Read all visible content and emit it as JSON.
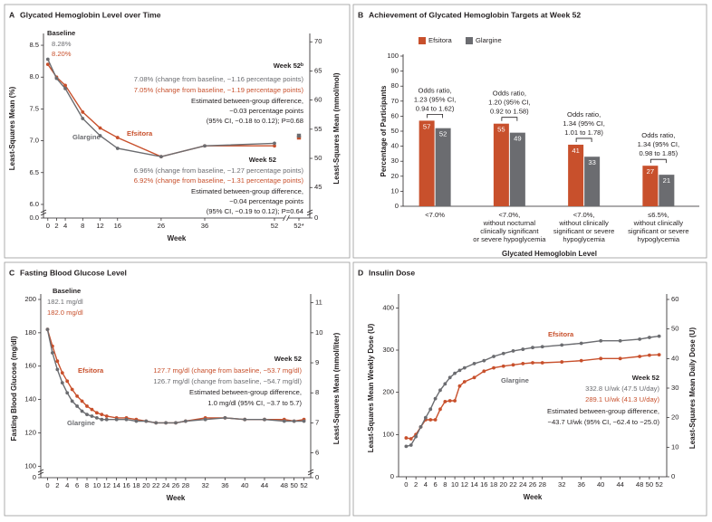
{
  "chart_data": [
    {
      "panel": "A",
      "type": "line",
      "title": "Glycated Hemoglobin Level over Time",
      "x": [
        0,
        2,
        4,
        8,
        12,
        16,
        26,
        36,
        52
      ],
      "xlim": [
        -1,
        52
      ],
      "xticks": [
        0,
        2,
        4,
        8,
        12,
        16,
        26,
        36,
        52
      ],
      "extra_x_label": "52*",
      "series": [
        {
          "name": "Efsitora",
          "color": "#c8502c",
          "values": [
            8.2,
            8.0,
            7.87,
            7.45,
            7.2,
            7.05,
            6.75,
            6.92,
            6.92
          ],
          "extra_value": 7.05
        },
        {
          "name": "Glargine",
          "color": "#6b6c70",
          "values": [
            8.28,
            7.98,
            7.82,
            7.35,
            7.08,
            6.88,
            6.75,
            6.92,
            6.96
          ],
          "extra_value": 7.08
        }
      ],
      "ylim": [
        5.9,
        8.6
      ],
      "yticks": [
        {
          "value": 6,
          "label": "6.0"
        },
        6.5,
        {
          "value": 7,
          "label": "7.0"
        },
        7.5,
        {
          "value": 8,
          "label": "8.0"
        },
        8.5
      ],
      "y_break_tick": {
        "value": 0,
        "label": "0.0"
      },
      "y2lim": [
        41,
        70.5
      ],
      "y2ticks": [
        45,
        50,
        55,
        60,
        65,
        70
      ],
      "y2_break_tick": 0,
      "xlabel": "Week",
      "ylabel": "Least-Squares Mean (%)",
      "y2label": "Least-Squares Mean (mmol/mol)",
      "annotations": [
        {
          "text": "Baseline",
          "color": "#231f20"
        },
        {
          "text": "8.28%",
          "color": "#6b6c70"
        },
        {
          "text": "8.20%",
          "color": "#c8502c"
        },
        {
          "text": "Week 52ᵇ",
          "color": "#231f20"
        },
        {
          "text": "7.08% (change from baseline, −1.16 percentage points)",
          "color": "#6b6c70"
        },
        {
          "text": "7.05% (change from baseline, −1.19 percentage points)",
          "color": "#c8502c"
        },
        {
          "text": "Estimated between-group difference,",
          "color": "#231f20"
        },
        {
          "text": "−0.03 percentage points",
          "color": "#231f20"
        },
        {
          "text": "(95% CI, −0.18 to 0.12); P=0.68",
          "color": "#231f20"
        },
        {
          "text": "Week 52",
          "color": "#231f20"
        },
        {
          "text": "6.96% (change from baseline, −1.27 percentage points)",
          "color": "#6b6c70"
        },
        {
          "text": "6.92% (change from baseline, −1.31 percentage points)",
          "color": "#c8502c"
        },
        {
          "text": "Estimated between-group difference,",
          "color": "#231f20"
        },
        {
          "text": "−0.04 percentage points",
          "color": "#231f20"
        },
        {
          "text": "(95% CI, −0.19 to 0.12); P=0.64",
          "color": "#231f20"
        }
      ]
    },
    {
      "panel": "B",
      "type": "bar",
      "title": "Achievement of Glycated Hemoglobin Targets at Week 52",
      "categories": [
        [
          "<7.0%"
        ],
        [
          "<7.0%,",
          "without nocturnal",
          "clinically significant",
          "or severe hypoglycemia"
        ],
        [
          "<7.0%,",
          "without clinically",
          "significant or severe",
          "hypoglycemia"
        ],
        [
          "≤6.5%,",
          "without clinically",
          "significant or severe",
          "hypoglycemia"
        ]
      ],
      "series": [
        {
          "name": "Efsitora",
          "color": "#c8502c",
          "values": [
            57,
            55,
            41,
            27
          ]
        },
        {
          "name": "Glargine",
          "color": "#6b6c70",
          "values": [
            52,
            49,
            33,
            21
          ]
        }
      ],
      "odds_ratios": [
        [
          "Odds ratio,",
          "1.23 (95% CI,",
          "0.94 to 1.62)"
        ],
        [
          "Odds ratio,",
          "1.20 (95% CI,",
          "0.92 to 1.58)"
        ],
        [
          "Odds ratio,",
          "1.34 (95% CI,",
          "1.01 to 1.78)"
        ],
        [
          "Odds ratio,",
          "1.34 (95% CI,",
          "0.98 to 1.85)"
        ]
      ],
      "ylim": [
        0,
        100
      ],
      "yticks": [
        0,
        10,
        20,
        30,
        40,
        50,
        60,
        70,
        80,
        90,
        100
      ],
      "xlabel": "Glycated Hemoglobin Level",
      "ylabel": "Percentage of Participants",
      "legend": "top-left"
    },
    {
      "panel": "C",
      "type": "line",
      "title": "Fasting Blood Glucose Level",
      "x": [
        0,
        1,
        2,
        3,
        4,
        5,
        6,
        7,
        8,
        9,
        10,
        11,
        12,
        14,
        16,
        18,
        20,
        22,
        24,
        26,
        28,
        32,
        36,
        40,
        44,
        48,
        50,
        52
      ],
      "xlim": [
        -1,
        53
      ],
      "xticks": [
        0,
        2,
        4,
        6,
        8,
        10,
        12,
        14,
        16,
        18,
        20,
        22,
        24,
        26,
        28,
        32,
        36,
        40,
        44,
        48,
        50,
        52
      ],
      "series": [
        {
          "name": "Efsitora",
          "color": "#c8502c",
          "values": [
            182,
            172,
            163,
            156,
            151,
            146,
            142,
            139,
            136,
            134,
            132,
            131,
            130,
            129,
            129,
            128,
            127,
            126,
            126,
            126,
            127,
            129,
            129,
            128,
            128,
            128,
            127,
            128
          ]
        },
        {
          "name": "Glargine",
          "color": "#6b6c70",
          "values": [
            182,
            168,
            158,
            150,
            144,
            139,
            136,
            133,
            131,
            130,
            129,
            128,
            128,
            128,
            128,
            127,
            127,
            126,
            126,
            126,
            127,
            128,
            129,
            128,
            128,
            127,
            127,
            127
          ]
        }
      ],
      "ylim": [
        98,
        200
      ],
      "yticks": [
        100,
        120,
        140,
        160,
        180,
        200
      ],
      "y_break_tick": 0,
      "y2lim": [
        5.444,
        11.111
      ],
      "y2ticks": [
        6,
        7,
        8,
        9,
        10,
        11
      ],
      "y2_break_tick": 0,
      "xlabel": "Week",
      "ylabel": "Fasting Blood Glucose (mg/dl)",
      "y2label": "Least-Squares Mean (mmol/liter)",
      "annotations": [
        {
          "text": "Baseline",
          "color": "#231f20"
        },
        {
          "text": "182.1 mg/dl",
          "color": "#6b6c70"
        },
        {
          "text": "182.0 mg/dl",
          "color": "#c8502c"
        },
        {
          "text": "Week 52",
          "color": "#231f20"
        },
        {
          "text": "127.7 mg/dl (change from baseline, −53.7 mg/dl)",
          "color": "#c8502c"
        },
        {
          "text": "126.7 mg/dl (change from baseline, −54.7 mg/dl)",
          "color": "#6b6c70"
        },
        {
          "text": "Estimated between-group difference,",
          "color": "#231f20"
        },
        {
          "text": "1.0 mg/dl (95% CI, −3.7 to 5.7)",
          "color": "#231f20"
        }
      ]
    },
    {
      "panel": "D",
      "type": "line",
      "title": "Insulin Dose",
      "x": [
        0,
        1,
        2,
        3,
        4,
        5,
        6,
        7,
        8,
        9,
        10,
        11,
        12,
        14,
        16,
        18,
        20,
        22,
        24,
        26,
        28,
        32,
        36,
        40,
        44,
        48,
        50,
        52
      ],
      "xlim": [
        -1,
        53
      ],
      "xticks": [
        0,
        2,
        4,
        6,
        8,
        10,
        12,
        14,
        16,
        18,
        20,
        22,
        24,
        26,
        28,
        32,
        36,
        40,
        44,
        48,
        50,
        52
      ],
      "series": [
        {
          "name": "Efsitora",
          "color": "#c8502c",
          "values": [
            92,
            90,
            100,
            118,
            135,
            135,
            135,
            160,
            178,
            180,
            180,
            215,
            225,
            235,
            250,
            258,
            262,
            265,
            268,
            270,
            270,
            272,
            275,
            280,
            280,
            285,
            288,
            289
          ]
        },
        {
          "name": "Glargine",
          "color": "#6b6c70",
          "values": [
            72,
            75,
            95,
            118,
            140,
            160,
            185,
            205,
            220,
            235,
            245,
            252,
            258,
            268,
            275,
            285,
            292,
            298,
            302,
            306,
            308,
            312,
            316,
            322,
            322,
            326,
            330,
            333
          ]
        }
      ],
      "ylim": [
        0,
        420
      ],
      "yticks": [
        0,
        100,
        200,
        300,
        400
      ],
      "y2lim": [
        0,
        60
      ],
      "y2ticks": [
        0,
        10,
        20,
        30,
        40,
        50,
        60
      ],
      "xlabel": "Week",
      "ylabel": "Least-Squares Mean Weekly Dose (U)",
      "y2label": "Least-Squares Mean Daily Dose (U)",
      "annotations": [
        {
          "text": "Week 52",
          "color": "#231f20"
        },
        {
          "text": "332.8 U/wk (47.5 U/day)",
          "color": "#6b6c70"
        },
        {
          "text": "289.1 U/wk (41.3 U/day)",
          "color": "#c8502c"
        },
        {
          "text": "Estimated between-group difference,",
          "color": "#231f20"
        },
        {
          "text": "−43.7 U/wk (95% CI, −62.4 to −25.0)",
          "color": "#231f20"
        }
      ]
    }
  ]
}
